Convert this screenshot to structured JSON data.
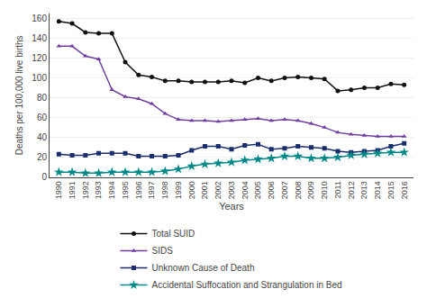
{
  "chart_data": {
    "type": "line",
    "x": [
      1990,
      1991,
      1992,
      1993,
      1994,
      1995,
      1996,
      1997,
      1998,
      1999,
      2000,
      2001,
      2002,
      2003,
      2004,
      2005,
      2006,
      2007,
      2008,
      2009,
      2010,
      2011,
      2012,
      2013,
      2014,
      2015,
      2016
    ],
    "series": [
      {
        "name": "Total SUID",
        "color": "#111111",
        "marker": "circle",
        "values": [
          157,
          155,
          146,
          145,
          145,
          116,
          103,
          101,
          97,
          97,
          96,
          96,
          96,
          97,
          95,
          100,
          97,
          100,
          101,
          100,
          99,
          87,
          88,
          90,
          90,
          94,
          93
        ]
      },
      {
        "name": "SIDS",
        "color": "#7040a0",
        "marker": "triangle-up",
        "values": [
          132,
          132,
          122,
          119,
          88,
          81,
          79,
          74,
          64,
          58,
          57,
          57,
          56,
          57,
          58,
          59,
          57,
          58,
          57,
          54,
          50,
          45,
          43,
          42,
          41,
          41,
          41
        ]
      },
      {
        "name": "Unknown Cause of Death",
        "color": "#1b2d6b",
        "marker": "square",
        "values": [
          23,
          22,
          22,
          24,
          24,
          24,
          21,
          21,
          21,
          22,
          27,
          31,
          31,
          28,
          32,
          33,
          28,
          29,
          31,
          30,
          29,
          26,
          25,
          26,
          27,
          31,
          34
        ]
      },
      {
        "name": "Accidental Suffocation and Strangulation in Bed",
        "color": "#008888",
        "marker": "star",
        "values": [
          5,
          5,
          4,
          4,
          5,
          5,
          5,
          5,
          6,
          8,
          11,
          13,
          14,
          15,
          17,
          18,
          19,
          21,
          21,
          19,
          19,
          20,
          22,
          23,
          24,
          25,
          25
        ]
      }
    ],
    "xlabel": "Years",
    "ylabel": "Deaths per 100,000 live births",
    "xlim": [
      1989.3,
      2016.7
    ],
    "xticks": [
      1990,
      1991,
      1992,
      1993,
      1994,
      1995,
      1996,
      1997,
      1998,
      1999,
      2000,
      2001,
      2002,
      2003,
      2004,
      2005,
      2006,
      2007,
      2008,
      2009,
      2010,
      2011,
      2012,
      2013,
      2014,
      2015,
      2016
    ],
    "ylim": [
      0,
      165
    ],
    "yticks": [
      0,
      20,
      40,
      60,
      80,
      100,
      120,
      140,
      160
    ],
    "grid": "y",
    "legend": "bottom"
  }
}
